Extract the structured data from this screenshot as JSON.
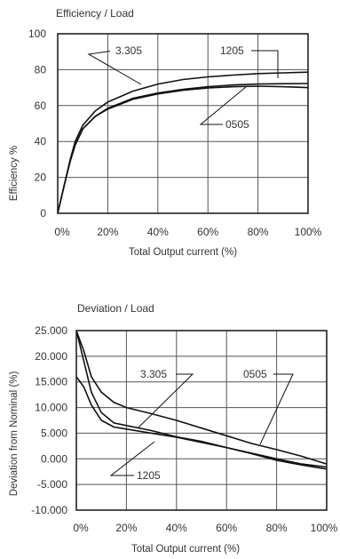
{
  "chart_data": [
    {
      "type": "line",
      "title": "Efficiency / Load",
      "xlabel": "Total Output current (%)",
      "ylabel": "Efficiency %",
      "xlim": [
        0,
        100
      ],
      "ylim": [
        0,
        100
      ],
      "x_ticks": [
        0,
        20,
        40,
        60,
        80,
        100
      ],
      "x_tick_labels": [
        "0%",
        "20%",
        "40%",
        "60%",
        "80%",
        "100%"
      ],
      "y_ticks": [
        0,
        20,
        40,
        60,
        80,
        100
      ],
      "y_tick_labels": [
        "0",
        "20",
        "40",
        "60",
        "80",
        "100"
      ],
      "grid": true,
      "series": [
        {
          "name": "3.305",
          "x": [
            0,
            3,
            5,
            7,
            10,
            15,
            20,
            30,
            40,
            50,
            60,
            70,
            80,
            90,
            100
          ],
          "y": [
            0,
            18,
            30,
            40,
            49,
            57,
            62,
            68,
            72,
            74.5,
            76,
            77,
            77.8,
            78.2,
            78.6
          ]
        },
        {
          "name": "1205",
          "x": [
            0,
            3,
            5,
            7,
            10,
            15,
            20,
            30,
            40,
            50,
            60,
            70,
            80,
            90,
            100
          ],
          "y": [
            0,
            18,
            29,
            38,
            47,
            54,
            58.5,
            64,
            67,
            69,
            70.5,
            71.5,
            72,
            72.2,
            72.3
          ]
        },
        {
          "name": "0505",
          "x": [
            0,
            3,
            5,
            7,
            10,
            15,
            20,
            30,
            40,
            50,
            60,
            70,
            80,
            90,
            100
          ],
          "y": [
            0,
            18,
            29,
            38,
            47,
            54,
            58,
            63.5,
            66.5,
            68.5,
            69.8,
            70.5,
            70.8,
            70.5,
            70
          ]
        }
      ],
      "annotations": [
        {
          "text": "3.305",
          "series": "3.305"
        },
        {
          "text": "1205",
          "series": "1205"
        },
        {
          "text": "0505",
          "series": "0505"
        }
      ]
    },
    {
      "type": "line",
      "title": "Deviation / Load",
      "xlabel": "Total Output current (%)",
      "ylabel": "Deviation from Nominal (%)",
      "xlim": [
        0,
        100
      ],
      "ylim": [
        -10,
        25
      ],
      "x_ticks": [
        0,
        20,
        40,
        60,
        80,
        100
      ],
      "x_tick_labels": [
        "0%",
        "20%",
        "40%",
        "60%",
        "80%",
        "100%"
      ],
      "y_ticks": [
        25,
        20,
        15,
        10,
        5,
        0,
        -5,
        -10
      ],
      "y_tick_labels": [
        "25.000",
        "20.000",
        "15.000",
        "10.000",
        "5.000",
        "0.000",
        "-5.000",
        "-10.000"
      ],
      "grid": true,
      "series": [
        {
          "name": "0505",
          "x": [
            0,
            3,
            6,
            10,
            15,
            20,
            30,
            40,
            50,
            60,
            70,
            80,
            90,
            100
          ],
          "y": [
            25,
            21,
            16,
            13,
            11,
            10,
            8.8,
            7.5,
            6,
            4.5,
            3,
            1.8,
            0.5,
            -1
          ]
        },
        {
          "name": "3.305",
          "x": [
            0,
            3,
            6,
            10,
            15,
            20,
            30,
            40,
            50,
            60,
            70,
            80,
            90,
            100
          ],
          "y": [
            25,
            19,
            13,
            9,
            7,
            6.5,
            5.5,
            4.3,
            3.4,
            2.2,
            1,
            -0.3,
            -1.2,
            -2
          ]
        },
        {
          "name": "1205",
          "x": [
            0,
            3,
            6,
            10,
            15,
            20,
            30,
            40,
            50,
            60,
            70,
            80,
            90,
            100
          ],
          "y": [
            16,
            14,
            10.5,
            7.5,
            6.2,
            5.8,
            5,
            4.2,
            3.2,
            2.2,
            1.1,
            0,
            -1,
            -1.6
          ]
        }
      ],
      "annotations": [
        {
          "text": "3.305",
          "series": "3.305"
        },
        {
          "text": "0505",
          "series": "0505"
        },
        {
          "text": "1205",
          "series": "1205"
        }
      ]
    }
  ]
}
